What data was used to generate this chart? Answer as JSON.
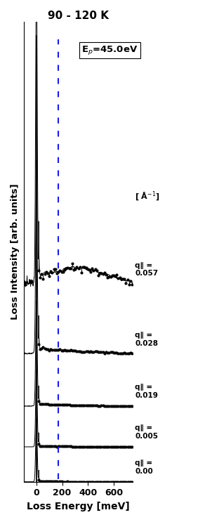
{
  "title": "90 - 120 K",
  "xlabel": "Loss Energy [meV]",
  "ylabel": "Loss Intensity [arb. units]",
  "xlim": [
    -100,
    750
  ],
  "dashed_line_x": 170,
  "unit_label": "[ Å$^{-1}$]",
  "q_labels": [
    "q∥ =\n0.057",
    "q∥ =\n0.028",
    "q∥ =\n0.019",
    "q∥ =\n0.005",
    "q∥ =\n0.00"
  ],
  "background_color": "#ffffff",
  "spectra_color": "#000000",
  "dashed_color": "#1a1aee",
  "elastic_peak_amp": 12.0,
  "elastic_peak_sigma": 5,
  "noise_seeds": [
    10,
    20,
    30,
    40,
    50
  ]
}
